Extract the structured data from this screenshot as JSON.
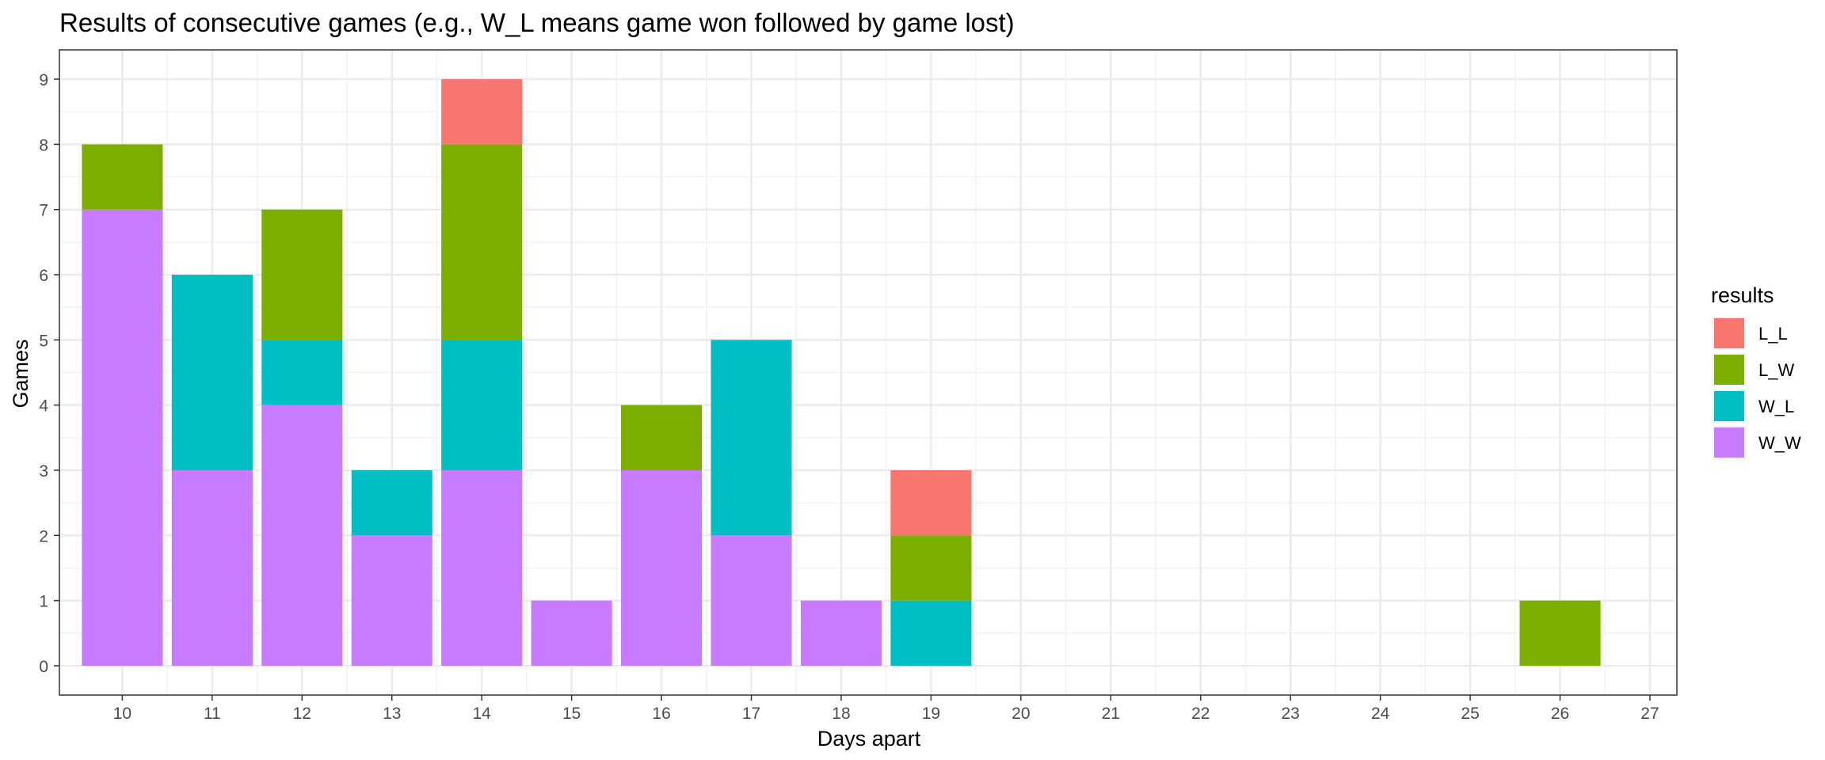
{
  "chart_data": {
    "type": "bar",
    "stacked": true,
    "title": "Results of consecutive games (e.g., W_L means game won followed by game lost)",
    "xlabel": "Days apart",
    "ylabel": "Games",
    "xlim": [
      9.3,
      27.3
    ],
    "ylim": [
      -0.45,
      9.45
    ],
    "x_ticks": [
      "10",
      "11",
      "12",
      "13",
      "14",
      "15",
      "16",
      "17",
      "18",
      "19",
      "20",
      "21",
      "22",
      "23",
      "24",
      "25",
      "26",
      "27"
    ],
    "y_ticks": [
      "0",
      "1",
      "2",
      "3",
      "4",
      "5",
      "6",
      "7",
      "8",
      "9"
    ],
    "grid": true,
    "legend": {
      "title": "results",
      "position": "right"
    },
    "categories": [
      10,
      11,
      12,
      13,
      14,
      15,
      16,
      17,
      18,
      19,
      26
    ],
    "series": [
      {
        "name": "L_L",
        "color": "#F8766D",
        "values": [
          0,
          0,
          0,
          0,
          1,
          0,
          0,
          0,
          0,
          1,
          0
        ]
      },
      {
        "name": "L_W",
        "color": "#7CAE00",
        "values": [
          1,
          0,
          2,
          0,
          3,
          0,
          1,
          0,
          0,
          1,
          1
        ]
      },
      {
        "name": "W_L",
        "color": "#00BFC4",
        "values": [
          0,
          3,
          1,
          1,
          2,
          0,
          0,
          3,
          0,
          1,
          0
        ]
      },
      {
        "name": "W_W",
        "color": "#C77CFF",
        "values": [
          7,
          3,
          4,
          2,
          3,
          1,
          3,
          2,
          1,
          0,
          0
        ]
      }
    ]
  }
}
